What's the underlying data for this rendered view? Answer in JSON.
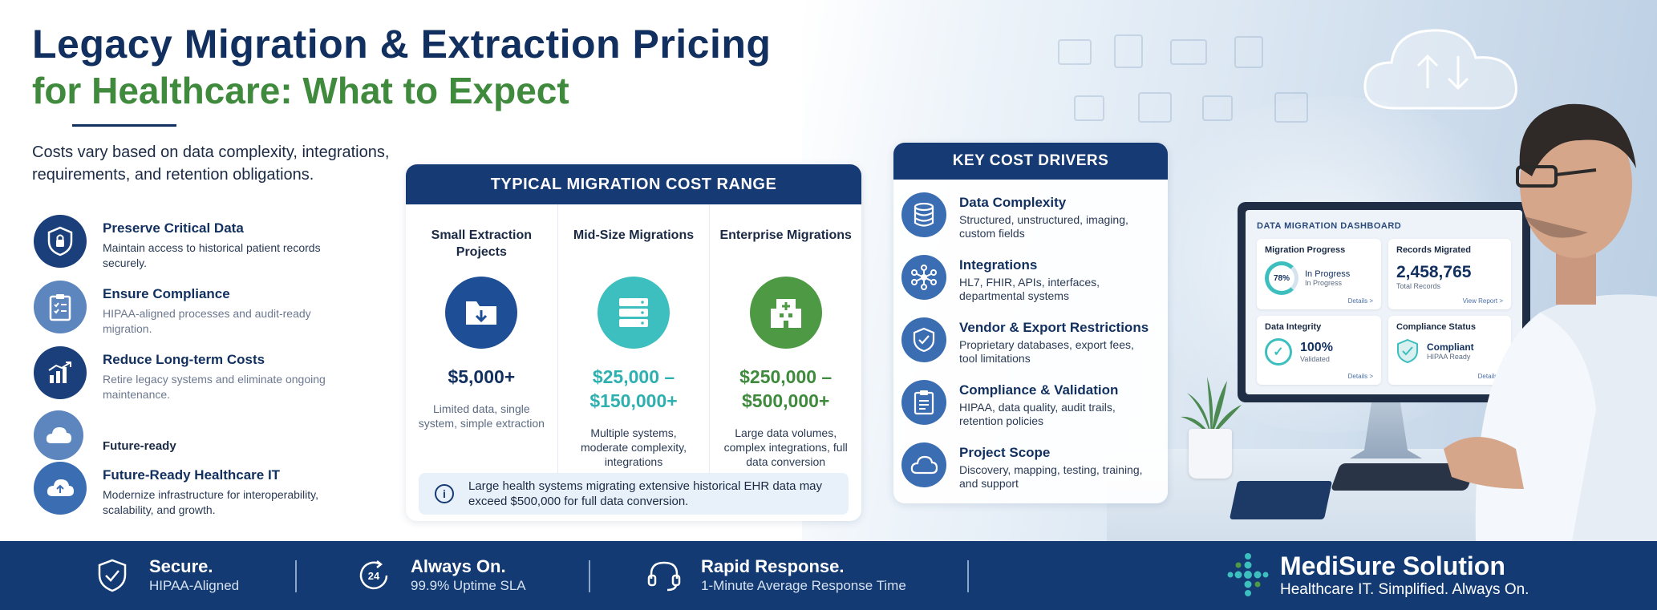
{
  "title": {
    "line1": "Legacy Migration & Extraction Pricing",
    "line2": "for Healthcare: What to Expect"
  },
  "intro": "Costs vary based on data complexity, integrations, requirements, and retention obligations.",
  "benefits": [
    {
      "title": "Preserve Critical Data",
      "desc": "Maintain access to historical patient records securely.",
      "icon": "shield-lock-icon"
    },
    {
      "title": "Ensure Compliance",
      "desc": "HIPAA-aligned processes and audit-ready migration.",
      "icon": "clipboard-check-icon"
    },
    {
      "title": "Reduce Long-term Costs",
      "desc": "Retire legacy systems and eliminate ongoing maintenance.",
      "icon": "bar-chart-icon"
    },
    {
      "title": "Future-Ready Healthcare IT",
      "desc": "Modernize infrastructure for interoperability, scalability, and growth.",
      "icon": "cloud-icon"
    }
  ],
  "benefit_ghost_label": "Future-ready",
  "cost_range": {
    "header": "TYPICAL MIGRATION COST RANGE",
    "columns": [
      {
        "title": "Small Extraction Projects",
        "price": "$5,000+",
        "desc": "Limited data, single system, simple extraction",
        "color": "#1e4f96",
        "icon": "folder-download-icon"
      },
      {
        "title": "Mid-Size Migrations",
        "price": "$25,000 – $150,000+",
        "desc": "Multiple systems, moderate complexity, integrations",
        "color": "#3dbfbf",
        "icon": "server-icon"
      },
      {
        "title": "Enterprise Migrations",
        "price": "$250,000 – $500,000+",
        "desc": "Large data volumes, complex integrations, full data conversion",
        "color": "#4e9a44",
        "icon": "hospital-icon"
      }
    ],
    "note": "Large health systems migrating extensive historical EHR data may exceed $500,000 for full data conversion."
  },
  "drivers": {
    "header": "KEY COST DRIVERS",
    "items": [
      {
        "title": "Data Complexity",
        "desc": "Structured, unstructured, imaging, custom fields",
        "icon": "database-icon"
      },
      {
        "title": "Integrations",
        "desc": "HL7, FHIR, APIs, interfaces, departmental systems",
        "icon": "network-icon"
      },
      {
        "title": "Vendor & Export Restrictions",
        "desc": "Proprietary databases, export fees, tool limitations",
        "icon": "shield-check-icon"
      },
      {
        "title": "Compliance & Validation",
        "desc": "HIPAA, data quality, audit trails, retention policies",
        "icon": "clipboard-icon"
      },
      {
        "title": "Project Scope",
        "desc": "Discovery, mapping, testing, training, and support",
        "icon": "cloud-icon"
      }
    ]
  },
  "dashboard": {
    "title": "DATA MIGRATION DASHBOARD",
    "progress_label": "Migration Progress",
    "progress_value": "78%",
    "progress_status": "In Progress",
    "progress_sub": "In Progress",
    "progress_link": "Details >",
    "records_label": "Records Migrated",
    "records_value": "2,458,765",
    "records_sub": "Total Records",
    "records_link": "View Report >",
    "integrity_label": "Data Integrity",
    "integrity_value": "100%",
    "integrity_sub": "Validated",
    "integrity_link": "Details >",
    "compliance_label": "Compliance Status",
    "compliance_value": "Compliant",
    "compliance_sub": "HIPAA Ready",
    "compliance_link": "Details >"
  },
  "footer": {
    "items": [
      {
        "title": "Secure.",
        "sub": "HIPAA-Aligned",
        "icon": "shield-check-icon"
      },
      {
        "title": "Always On.",
        "sub": "99.9% Uptime SLA",
        "icon": "clock-24-icon",
        "icon_text": "24"
      },
      {
        "title": "Rapid Response.",
        "sub": "1-Minute Average Response Time",
        "icon": "headset-icon"
      }
    ],
    "brand_name": "MediSure Solution",
    "brand_tagline": "Healthcare IT. Simplified. Always On."
  },
  "colors": {
    "navy": "#133a72",
    "green": "#3f8a3c",
    "teal": "#3dbfbf"
  }
}
